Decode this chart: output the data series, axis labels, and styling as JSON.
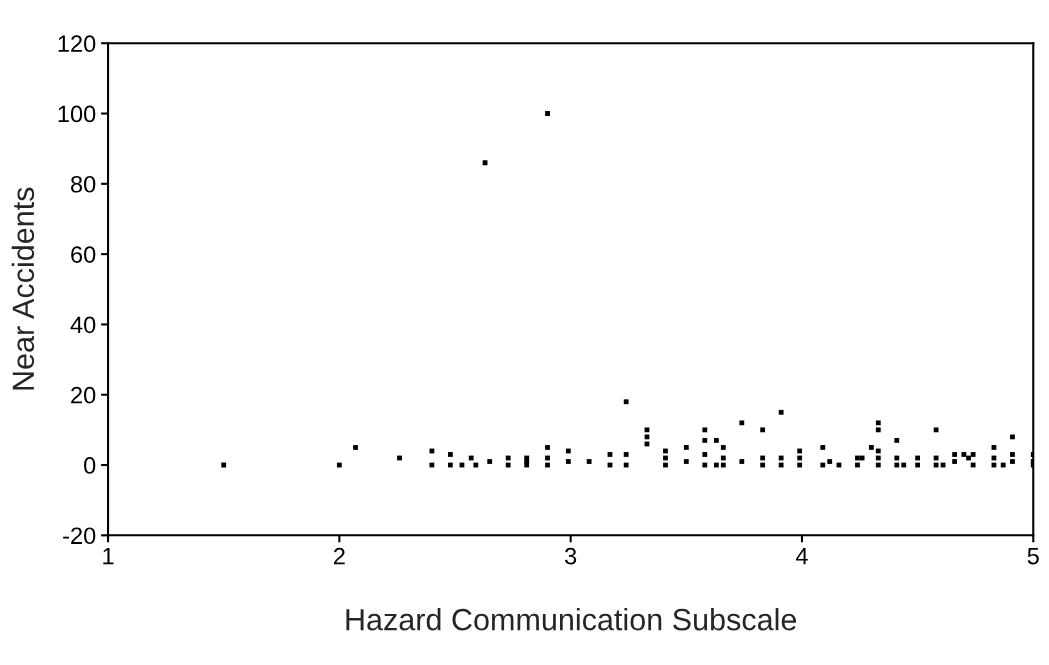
{
  "chart_data": {
    "type": "scatter",
    "xlabel": "Hazard Communication Subscale",
    "ylabel": "Near Accidents",
    "xlim": [
      1,
      5
    ],
    "xticks": [
      1,
      2,
      3,
      4,
      5
    ],
    "ylim": [
      -20,
      120
    ],
    "yticks": [
      -20,
      0,
      20,
      40,
      60,
      80,
      100,
      120
    ],
    "grid": false,
    "marker": "square",
    "series": [
      {
        "color": "#000000",
        "x": [
          1.5,
          2.0,
          2.07,
          2.26,
          2.4,
          2.4,
          2.48,
          2.48,
          2.53,
          2.57,
          2.59,
          2.63,
          2.65,
          2.73,
          2.73,
          2.81,
          2.81,
          2.81,
          2.9,
          2.9,
          2.9,
          2.9,
          2.99,
          2.99,
          3.08,
          3.17,
          3.17,
          3.24,
          3.24,
          3.24,
          3.33,
          3.33,
          3.33,
          3.41,
          3.41,
          3.41,
          3.5,
          3.5,
          3.58,
          3.58,
          3.58,
          3.58,
          3.63,
          3.63,
          3.66,
          3.66,
          3.66,
          3.74,
          3.74,
          3.83,
          3.83,
          3.83,
          3.91,
          3.91,
          3.91,
          3.99,
          3.99,
          3.99,
          4.09,
          4.09,
          4.12,
          4.16,
          4.24,
          4.24,
          4.26,
          4.3,
          4.33,
          4.33,
          4.33,
          4.33,
          4.33,
          4.41,
          4.41,
          4.41,
          4.44,
          4.5,
          4.5,
          4.58,
          4.58,
          4.58,
          4.61,
          4.66,
          4.66,
          4.7,
          4.72,
          4.74,
          4.74,
          4.83,
          4.83,
          4.83,
          4.87,
          4.91,
          4.91,
          4.91,
          5.0,
          5.0,
          5.0
        ],
        "values": [
          0,
          0,
          5,
          2,
          4,
          0,
          3,
          0,
          0,
          2,
          0,
          86,
          1,
          2,
          0,
          2,
          1,
          0,
          100,
          5,
          2,
          0,
          4,
          1,
          1,
          3,
          0,
          18,
          3,
          0,
          10,
          8,
          6,
          4,
          2,
          0,
          5,
          1,
          10,
          7,
          3,
          0,
          7,
          0,
          5,
          2,
          0,
          12,
          1,
          10,
          2,
          0,
          15,
          2,
          0,
          4,
          2,
          0,
          5,
          0,
          1,
          0,
          2,
          0,
          2,
          5,
          12,
          10,
          4,
          2,
          0,
          7,
          2,
          0,
          0,
          2,
          0,
          10,
          2,
          0,
          0,
          3,
          1,
          3,
          2,
          3,
          0,
          5,
          2,
          0,
          0,
          8,
          3,
          1,
          3,
          1,
          0
        ]
      }
    ]
  }
}
